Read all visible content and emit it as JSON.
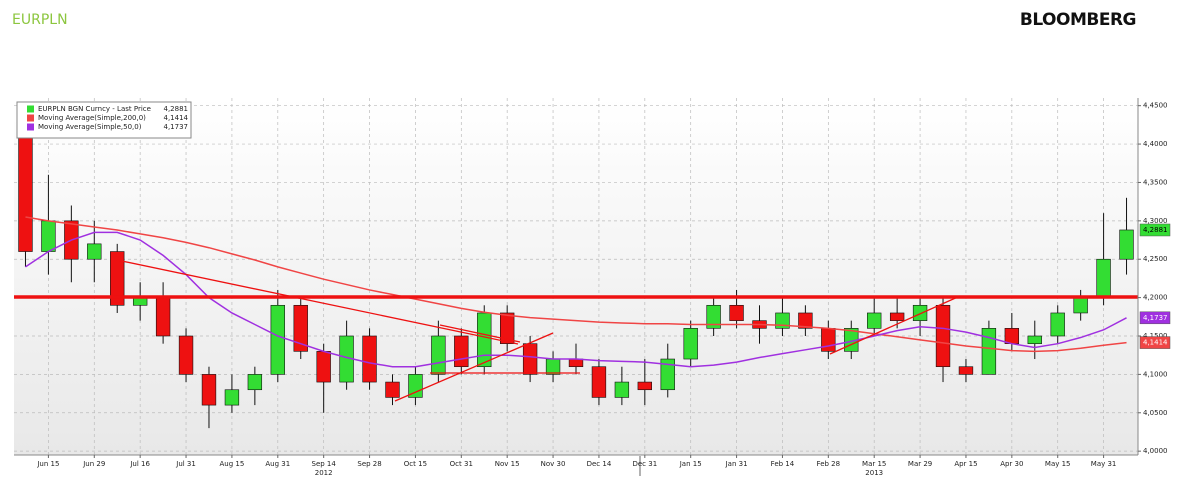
{
  "header": {
    "ticker": "EURPLN",
    "brand": "BLOOMBERG"
  },
  "chart_data": {
    "type": "candlestick",
    "categories": [
      null,
      "Jun 15",
      null,
      "Jun 29",
      null,
      "Jul 16",
      null,
      "Jul 31",
      null,
      "Aug 15",
      null,
      "Aug 31",
      null,
      "Sep 14",
      null,
      "Sep 28",
      null,
      "Oct 15",
      null,
      "Oct 31",
      null,
      "Nov 15",
      null,
      "Nov 30",
      null,
      "Dec 14",
      null,
      "Dec 31",
      null,
      "Jan 15",
      null,
      "Jan 31",
      null,
      "Feb 14",
      null,
      "Feb 28",
      null,
      "Mar 15",
      null,
      "Mar 29",
      null,
      "Apr 15",
      null,
      "Apr 30",
      null,
      "May 15",
      null,
      "May 31",
      null
    ],
    "years": [
      "2012",
      "2013"
    ],
    "ylim": [
      3.995,
      4.46
    ],
    "yticks": [
      {
        "value": 4.0,
        "label": "4,0000"
      },
      {
        "value": 4.05,
        "label": "4,0500"
      },
      {
        "value": 4.1,
        "label": "4,1000"
      },
      {
        "value": 4.15,
        "label": "4,1500"
      },
      {
        "value": 4.2,
        "label": "4,2000"
      },
      {
        "value": 4.25,
        "label": "4,2500"
      },
      {
        "value": 4.3,
        "label": "4,3000"
      },
      {
        "value": 4.35,
        "label": "4,3500"
      },
      {
        "value": 4.4,
        "label": "4,4000"
      },
      {
        "value": 4.45,
        "label": "4,4500"
      }
    ],
    "grid": true,
    "series": [
      {
        "name": "EURPLN BGN Curncy - Last Price",
        "type": "candlestick",
        "color": "#33dd33",
        "down_color": "#ee1111",
        "open": [
          4.42,
          4.26,
          4.3,
          4.25,
          4.26,
          4.19,
          4.2,
          4.15,
          4.1,
          4.06,
          4.08,
          4.1,
          4.19,
          4.13,
          4.09,
          4.15,
          4.09,
          4.07,
          4.1,
          4.15,
          4.11,
          4.18,
          4.14,
          4.1,
          4.12,
          4.11,
          4.07,
          4.09,
          4.08,
          4.12,
          4.16,
          4.19,
          4.17,
          4.16,
          4.18,
          4.16,
          4.13,
          4.16,
          4.18,
          4.17,
          4.19,
          4.11,
          4.1,
          4.16,
          4.14,
          4.15,
          4.18,
          4.2,
          4.25
        ],
        "high": [
          4.43,
          4.36,
          4.32,
          4.3,
          4.27,
          4.22,
          4.22,
          4.16,
          4.11,
          4.1,
          4.11,
          4.21,
          4.2,
          4.14,
          4.17,
          4.16,
          4.1,
          4.11,
          4.17,
          4.16,
          4.19,
          4.19,
          4.15,
          4.13,
          4.14,
          4.12,
          4.11,
          4.12,
          4.14,
          4.17,
          4.2,
          4.21,
          4.19,
          4.2,
          4.19,
          4.17,
          4.17,
          4.2,
          4.2,
          4.2,
          4.2,
          4.12,
          4.17,
          4.18,
          4.17,
          4.19,
          4.21,
          4.31,
          4.33
        ],
        "low": [
          4.24,
          4.23,
          4.22,
          4.22,
          4.18,
          4.17,
          4.14,
          4.09,
          4.03,
          4.05,
          4.06,
          4.09,
          4.12,
          4.05,
          4.08,
          4.08,
          4.06,
          4.06,
          4.09,
          4.1,
          4.1,
          4.13,
          4.09,
          4.09,
          4.1,
          4.06,
          4.06,
          4.06,
          4.07,
          4.11,
          4.15,
          4.16,
          4.14,
          4.15,
          4.15,
          4.12,
          4.12,
          4.15,
          4.16,
          4.15,
          4.09,
          4.09,
          4.1,
          4.13,
          4.12,
          4.14,
          4.17,
          4.19,
          4.23
        ],
        "close": [
          4.26,
          4.3,
          4.25,
          4.27,
          4.19,
          4.2,
          4.15,
          4.1,
          4.06,
          4.08,
          4.1,
          4.19,
          4.13,
          4.09,
          4.15,
          4.09,
          4.07,
          4.1,
          4.15,
          4.11,
          4.18,
          4.14,
          4.1,
          4.12,
          4.11,
          4.07,
          4.09,
          4.08,
          4.12,
          4.16,
          4.19,
          4.17,
          4.16,
          4.18,
          4.16,
          4.13,
          4.16,
          4.18,
          4.17,
          4.19,
          4.11,
          4.1,
          4.16,
          4.14,
          4.15,
          4.18,
          4.2,
          4.25,
          4.2881
        ],
        "last": {
          "value": 4.2881,
          "label": "4,2881"
        }
      },
      {
        "name": "Moving Average(Simple,200,0)",
        "type": "line",
        "color": "#f04545",
        "values": [
          4.305,
          4.3,
          4.296,
          4.292,
          4.288,
          4.283,
          4.278,
          4.272,
          4.265,
          4.257,
          4.249,
          4.24,
          4.232,
          4.224,
          4.217,
          4.21,
          4.204,
          4.198,
          4.192,
          4.186,
          4.181,
          4.177,
          4.174,
          4.172,
          4.17,
          4.168,
          4.167,
          4.166,
          4.166,
          4.165,
          4.165,
          4.165,
          4.165,
          4.164,
          4.162,
          4.16,
          4.157,
          4.153,
          4.149,
          4.145,
          4.141,
          4.137,
          4.134,
          4.131,
          4.13,
          4.131,
          4.134,
          4.138,
          4.1414
        ],
        "last": {
          "value": 4.1414,
          "label": "4,1414"
        }
      },
      {
        "name": "Moving Average(Simple,50,0)",
        "type": "line",
        "color": "#a030e0",
        "values": [
          4.24,
          4.26,
          4.275,
          4.285,
          4.285,
          4.275,
          4.255,
          4.23,
          4.2,
          4.18,
          4.165,
          4.15,
          4.14,
          4.13,
          4.122,
          4.115,
          4.11,
          4.11,
          4.115,
          4.12,
          4.125,
          4.125,
          4.123,
          4.12,
          4.12,
          4.118,
          4.117,
          4.116,
          4.113,
          4.11,
          4.112,
          4.116,
          4.122,
          4.127,
          4.132,
          4.137,
          4.143,
          4.15,
          4.157,
          4.162,
          4.16,
          4.155,
          4.148,
          4.14,
          4.135,
          4.14,
          4.148,
          4.158,
          4.1737
        ],
        "last": {
          "value": 4.1737,
          "label": "4,1737"
        }
      }
    ]
  }
}
